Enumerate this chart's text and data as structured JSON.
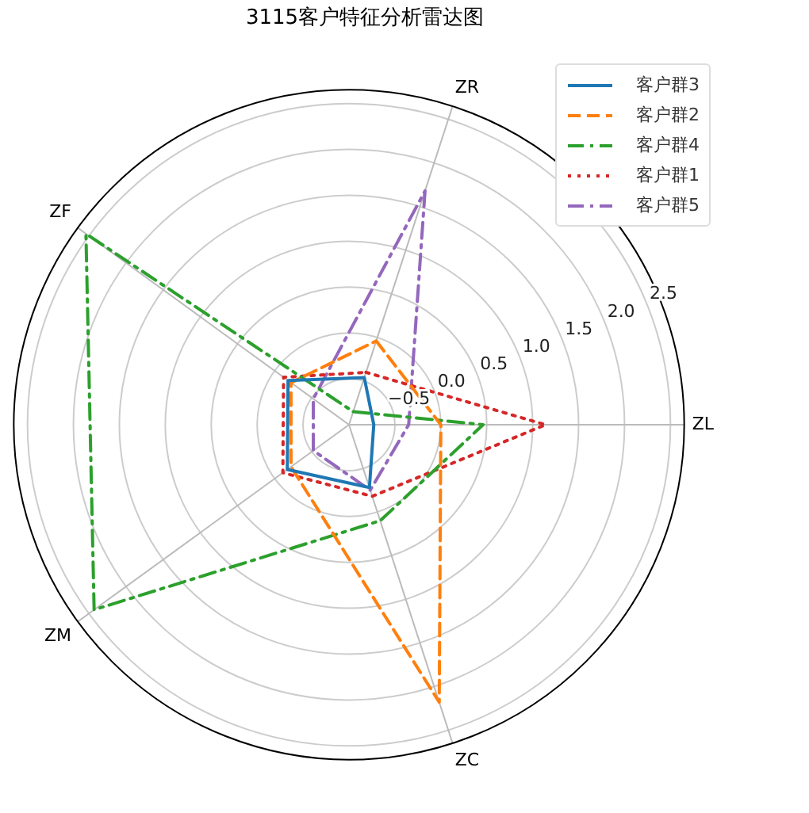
{
  "chart_data": {
    "type": "radar",
    "title": "3115客户特征分析雷达图",
    "categories": [
      "ZR",
      "ZL",
      "ZC",
      "ZM",
      "ZF"
    ],
    "series": [
      {
        "name": "客户群3",
        "color": "#1f77b4",
        "line_style": "solid",
        "values": [
          -0.46,
          -0.73,
          -0.28,
          -0.17,
          -0.18
        ]
      },
      {
        "name": "客户群2",
        "color": "#ff7f0e",
        "line_style": "dashed",
        "values": [
          -0.04,
          0.0,
          2.18,
          -0.22,
          -0.22
        ]
      },
      {
        "name": "客户群4",
        "color": "#2ca02c",
        "line_style": "dashdot",
        "values": [
          -0.85,
          0.46,
          0.1,
          2.43,
          2.54
        ]
      },
      {
        "name": "客户群1",
        "color": "#d62728",
        "line_style": "dotted",
        "values": [
          -0.4,
          1.14,
          -0.18,
          -0.11,
          -0.12
        ]
      },
      {
        "name": "客户群5",
        "color": "#9467bd",
        "line_style": "dashdot",
        "values": [
          1.68,
          -0.35,
          -0.25,
          -0.52,
          -0.52
        ]
      }
    ],
    "ylim": [
      -1,
      2.65
    ],
    "yticks": [
      {
        "value": -0.5,
        "label": "−0.5"
      },
      {
        "value": 0,
        "label": "0.0"
      },
      {
        "value": 0.5,
        "label": "0.5"
      },
      {
        "value": 1,
        "label": "1.0"
      },
      {
        "value": 1.5,
        "label": "1.5"
      },
      {
        "value": 2,
        "label": "2.0"
      },
      {
        "value": 2.5,
        "label": "2.5"
      }
    ],
    "grid": true,
    "legend": "top right"
  }
}
